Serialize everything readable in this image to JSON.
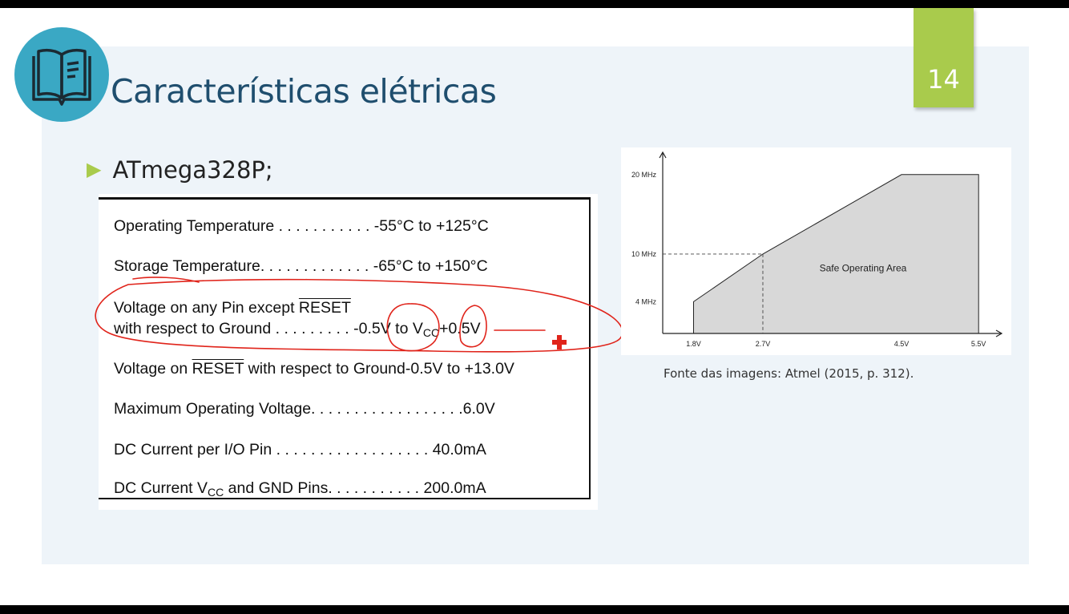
{
  "slide": {
    "title": "Características elétricas",
    "page_number": "14",
    "bullet": "ATmega328P;",
    "book_icon": "book-icon",
    "caption": "Fonte das imagens: Atmel (2015, p. 312)."
  },
  "specs": [
    {
      "label": "Operating Temperature",
      "dots": " . . . . . . . . . . . ",
      "value": "-55°C to +125°C"
    },
    {
      "label": "Storage Temperature",
      "dots": ". . . . . . . . . . . . . ",
      "value": "-65°C to +150°C"
    },
    {
      "label_line1_pre": "Voltage on any Pin except ",
      "label_line1_reset": "RESET",
      "label_line2": "with respect to Ground",
      "dots": "  . . . . . . . . . ",
      "value_pre": "-0.5V to V",
      "value_sub": "CC",
      "value_post": "+0.5V"
    },
    {
      "label_pre": "Voltage on ",
      "label_reset": "RESET",
      "label_post": " with respect to Ground",
      "value": "-0.5V to +13.0V"
    },
    {
      "label": "Maximum Operating Voltage",
      "dots": ". . . . . . . . . . . . . . . . . ",
      "value": ".6.0V"
    },
    {
      "label": "DC Current per I/O Pin",
      "dots": " . . . . . . . . . . . . . . . . . . ",
      "value": "40.0mA"
    },
    {
      "label_pre": "DC Current V",
      "label_sub": "CC",
      "label_post": " and GND Pins",
      "dots": ". . . . . . . . . . . ",
      "value": "200.0mA"
    }
  ],
  "chart_data": {
    "type": "area",
    "x_ticks": [
      "1.8V",
      "2.7V",
      "4.5V",
      "5.5V"
    ],
    "y_ticks": [
      "4 MHz",
      "10 MHz",
      "20 MHz"
    ],
    "x": [
      1.8,
      1.8,
      2.7,
      4.5,
      5.5,
      5.5
    ],
    "y": [
      0,
      4,
      10,
      20,
      20,
      0
    ],
    "series": [
      {
        "name": "Safe Operating Area",
        "values": [
          0,
          4,
          10,
          20,
          20,
          0
        ]
      }
    ],
    "annotations": [
      "Safe Operating Area"
    ],
    "xlim": [
      1.4,
      5.8
    ],
    "ylim": [
      0,
      22
    ],
    "dashed_guides": [
      {
        "x": 2.7,
        "y": 10
      }
    ],
    "fill_color": "#d8d8d8"
  },
  "colors": {
    "accent_green": "#a9cb4c",
    "title_blue": "#1f4e6e",
    "icon_circle": "#3aa8c4",
    "annotation_red": "#e0241b"
  }
}
